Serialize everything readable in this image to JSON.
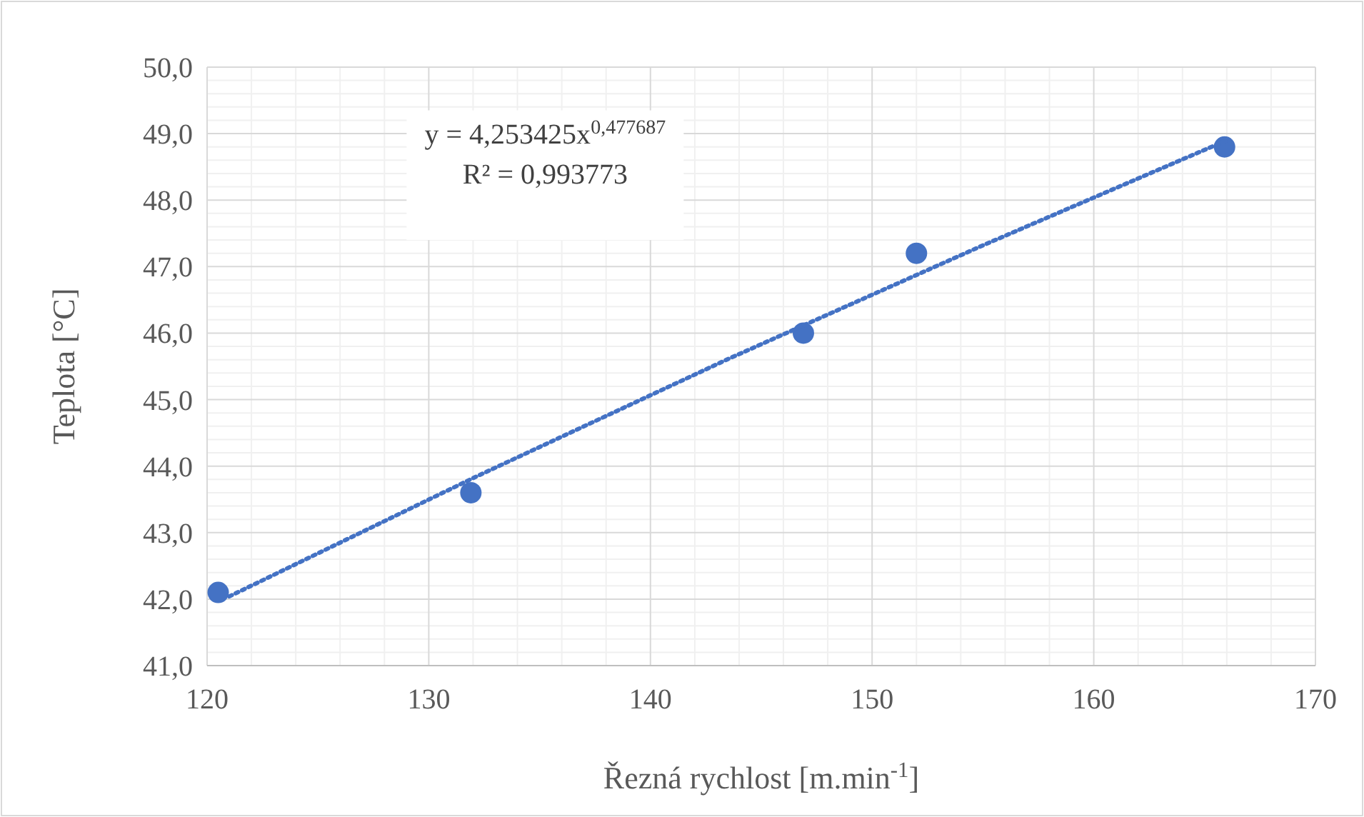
{
  "chart_data": {
    "type": "scatter",
    "xlabel": "Řezná rychlost [m.min$^{-1}$]",
    "ylabel": "Teplota [°C]",
    "xlim": [
      120,
      170
    ],
    "xticks": [
      120,
      130,
      140,
      150,
      160,
      170
    ],
    "ylim": [
      41,
      50
    ],
    "yticks": [
      {
        "value": 41,
        "label": "41,0"
      },
      {
        "value": 42,
        "label": "42,0"
      },
      {
        "value": 43,
        "label": "43,0"
      },
      {
        "value": 44,
        "label": "44,0"
      },
      {
        "value": 45,
        "label": "45,0"
      },
      {
        "value": 46,
        "label": "46,0"
      },
      {
        "value": 47,
        "label": "47,0"
      },
      {
        "value": 48,
        "label": "48,0"
      },
      {
        "value": 49,
        "label": "49,0"
      },
      {
        "value": 50,
        "label": "50,0"
      }
    ],
    "grid": true,
    "series": [
      {
        "color": "#4472c4",
        "marker": "circle",
        "x": [
          120.5,
          131.9,
          146.9,
          152.0,
          165.9
        ],
        "values": [
          42.1,
          43.6,
          46.0,
          47.2,
          48.8
        ]
      },
      {
        "type": "line",
        "color": "#4472c4",
        "line_style": "dotted",
        "marker": "none",
        "x": [
          121,
          132,
          143.5,
          155,
          166
        ],
        "values": [
          42.04,
          43.82,
          45.61,
          47.32,
          48.9
        ]
      }
    ],
    "annotations": [
      "y = 4,253425x$^{0,477687}$",
      "R² = 0,993773"
    ]
  }
}
